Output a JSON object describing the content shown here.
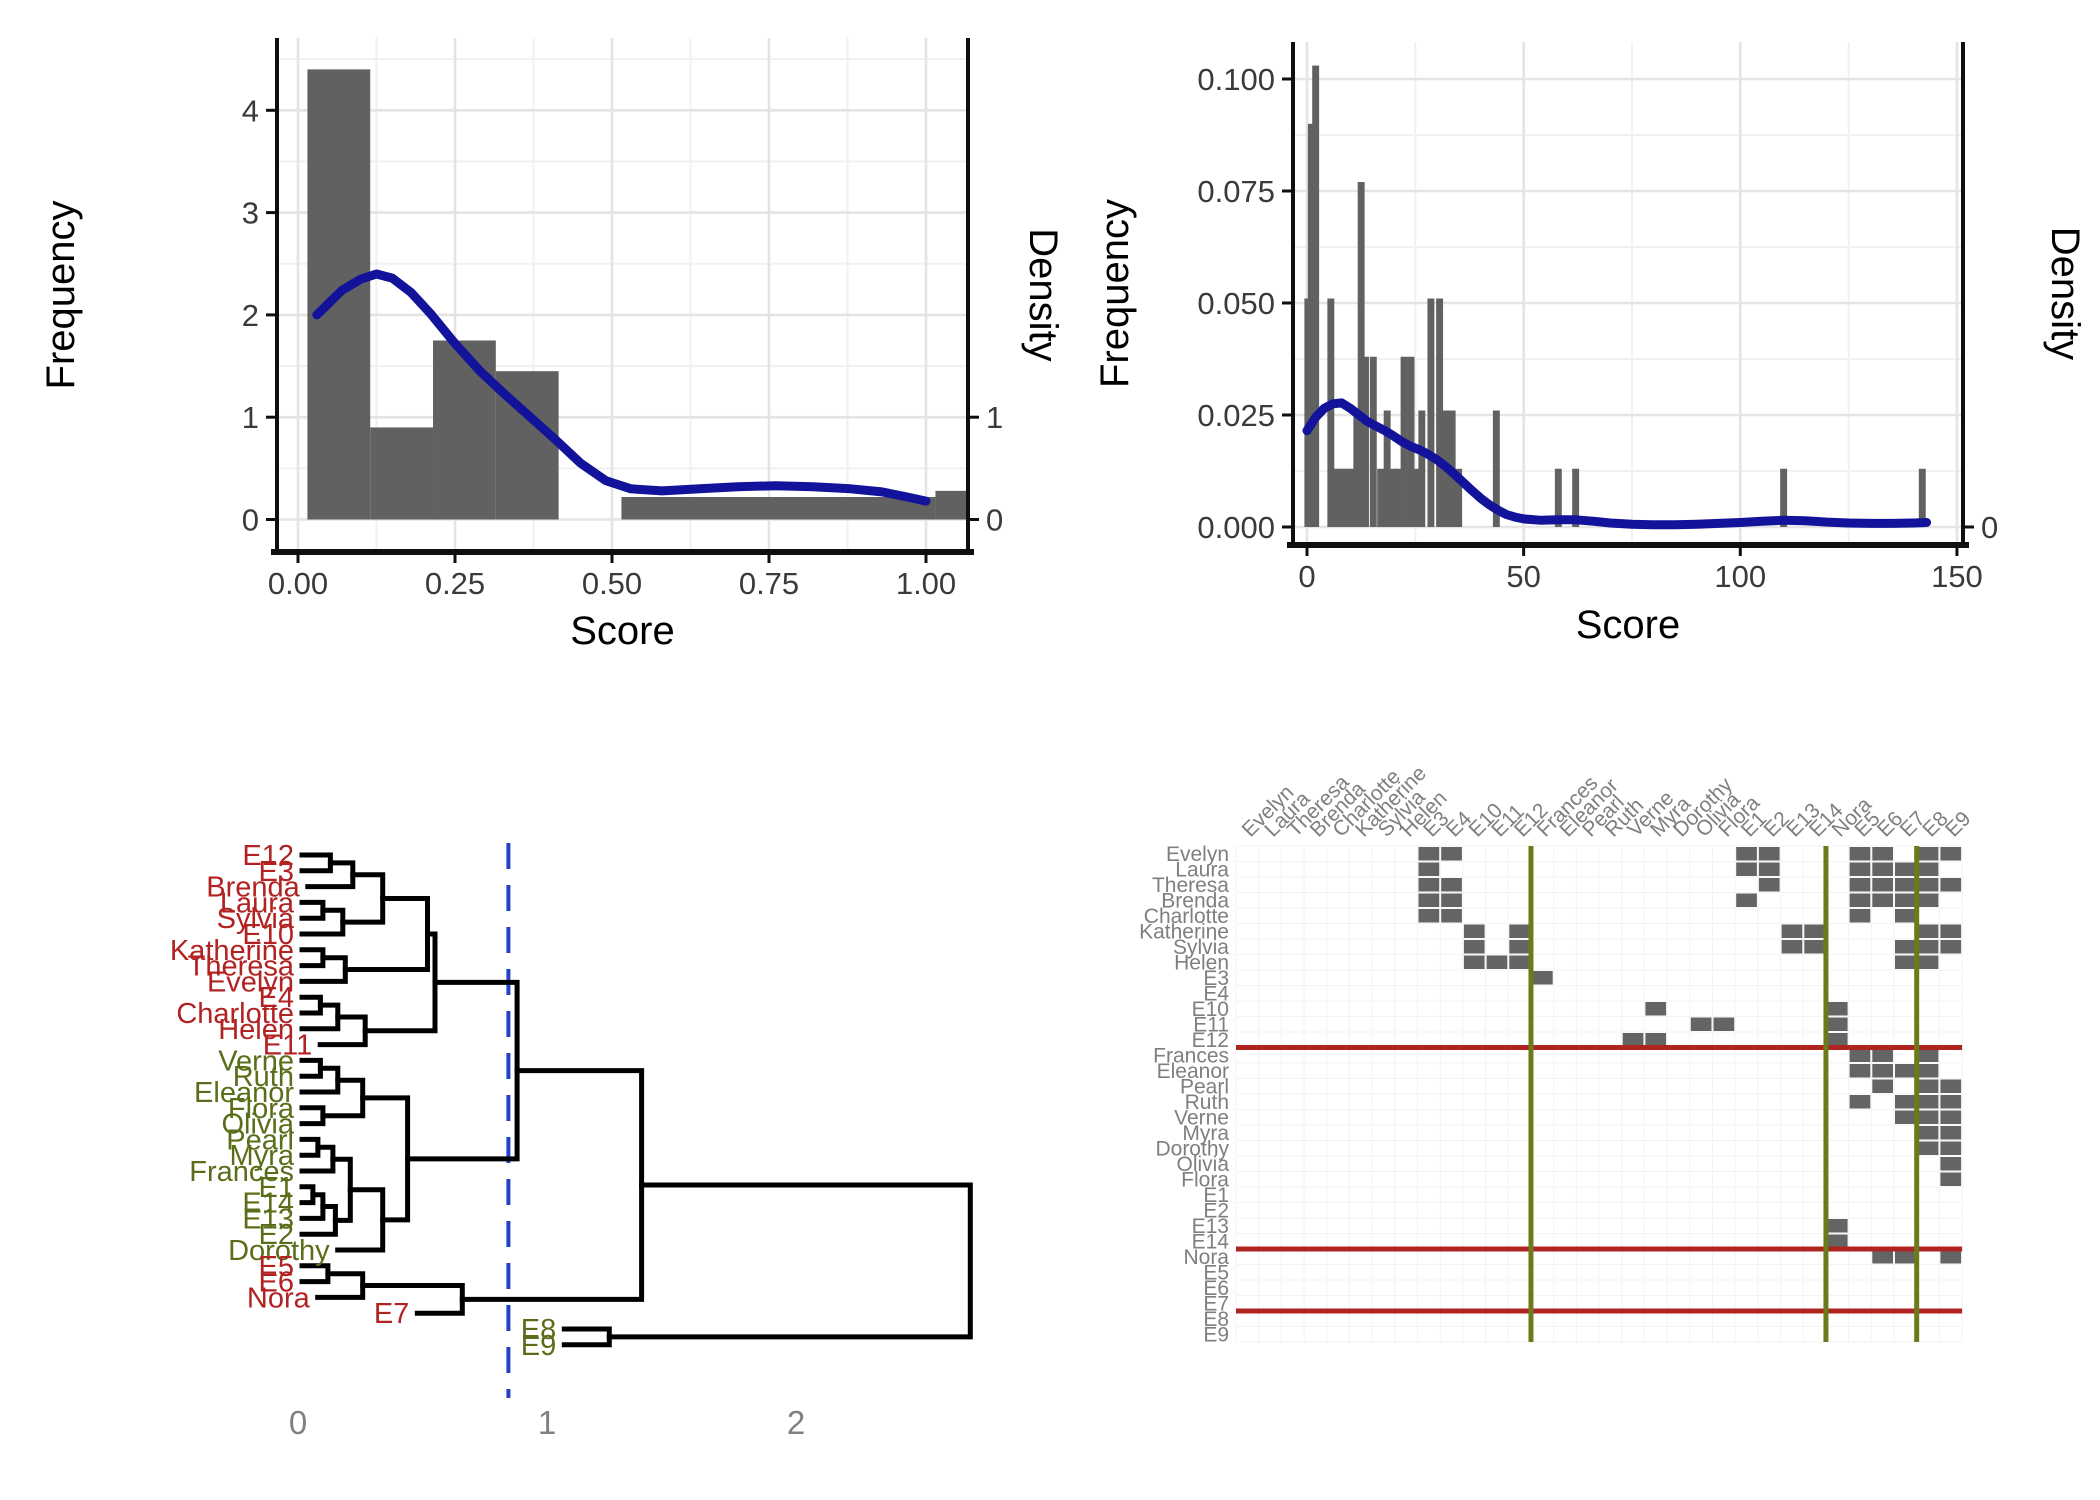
{
  "figure": {
    "background": "#ffffff",
    "colors": {
      "bar": "#616161",
      "curve": "#12129B",
      "grid_major": "#e4e4e4",
      "grid_minor": "#f1f1f1",
      "axis": "#0f0f0f",
      "tick_label": "#3a3a3a",
      "axis_title": "#000000",
      "dendro_line": "#000000",
      "dendro_tick_label": "#808080",
      "cut_line": "#2441C8",
      "label_red": "#B22222",
      "label_green": "#5A6E19",
      "matrix_cell": "#646464",
      "matrix_label": "#7f7f7f",
      "matrix_grid": "#f3f3f3",
      "block_hline": "#B02420",
      "block_vline": "#6B7B1C"
    }
  },
  "chart_data": [
    {
      "id": "hist-score-normalized",
      "type": "bar",
      "subtype": "histogram_with_density",
      "xlabel": "Score",
      "ylabel_left": "Frequency",
      "ylabel_right": "Density",
      "x_ticks": [
        0,
        0.25,
        0.5,
        0.75,
        1.0
      ],
      "x_tick_labels": [
        "0.00",
        "0.25",
        "0.50",
        "0.75",
        "1.00"
      ],
      "x_minor": [
        0.125,
        0.375,
        0.625,
        0.875
      ],
      "y_ticks": [
        0,
        1,
        2,
        3,
        4
      ],
      "y_tick_labels": [
        "0",
        "1",
        "2",
        "3",
        "4"
      ],
      "y_minor": [
        0.5,
        1.5,
        2.5,
        3.5,
        4.5
      ],
      "right_ticks": [
        0,
        1
      ],
      "right_tick_labels": [
        "0",
        "1"
      ],
      "xlim": [
        -0.034,
        1.067
      ],
      "ylim": [
        0,
        4.7
      ],
      "bars": [
        [
          0.015,
          0.115,
          4.4
        ],
        [
          0.115,
          0.215,
          0.9
        ],
        [
          0.215,
          0.315,
          1.75
        ],
        [
          0.315,
          0.415,
          1.45
        ],
        [
          0.515,
          1.015,
          0.22
        ],
        [
          1.015,
          1.067,
          0.28
        ]
      ],
      "density": [
        [
          0.03,
          2.0
        ],
        [
          0.05,
          2.12
        ],
        [
          0.07,
          2.24
        ],
        [
          0.1,
          2.35
        ],
        [
          0.125,
          2.4
        ],
        [
          0.15,
          2.36
        ],
        [
          0.18,
          2.22
        ],
        [
          0.21,
          2.02
        ],
        [
          0.25,
          1.72
        ],
        [
          0.29,
          1.45
        ],
        [
          0.33,
          1.22
        ],
        [
          0.37,
          1.0
        ],
        [
          0.41,
          0.78
        ],
        [
          0.45,
          0.55
        ],
        [
          0.49,
          0.38
        ],
        [
          0.53,
          0.3
        ],
        [
          0.58,
          0.28
        ],
        [
          0.64,
          0.3
        ],
        [
          0.7,
          0.32
        ],
        [
          0.76,
          0.33
        ],
        [
          0.82,
          0.32
        ],
        [
          0.88,
          0.3
        ],
        [
          0.93,
          0.27
        ],
        [
          0.97,
          0.22
        ],
        [
          1.0,
          0.18
        ]
      ]
    },
    {
      "id": "hist-score-raw",
      "type": "bar",
      "subtype": "histogram_with_density",
      "xlabel": "Score",
      "ylabel_left": "Frequency",
      "ylabel_right": "Density",
      "x_ticks": [
        0,
        50,
        100,
        150
      ],
      "x_tick_labels": [
        "0",
        "50",
        "100",
        "150"
      ],
      "x_minor": [
        25,
        75,
        125
      ],
      "y_ticks": [
        0,
        0.025,
        0.05,
        0.075,
        0.1
      ],
      "y_tick_labels": [
        "0.000",
        "0.025",
        "0.050",
        "0.075",
        "0.100"
      ],
      "y_minor": [
        0.0125,
        0.0375,
        0.0625,
        0.0875
      ],
      "right_ticks": [
        0
      ],
      "right_tick_labels": [
        "0"
      ],
      "xlim": [
        -3,
        152
      ],
      "ylim": [
        0,
        0.108
      ],
      "bar_width": 1.6,
      "spikes": [
        [
          0.2,
          0.051
        ],
        [
          1.0,
          0.09
        ],
        [
          2.0,
          0.103
        ],
        [
          5.5,
          0.051
        ],
        [
          7,
          0.013
        ],
        [
          8,
          0.013
        ],
        [
          9,
          0.013
        ],
        [
          10,
          0.013
        ],
        [
          11.5,
          0.026
        ],
        [
          12.5,
          0.077
        ],
        [
          13.5,
          0.038
        ],
        [
          15.3,
          0.038
        ],
        [
          17,
          0.013
        ],
        [
          18.5,
          0.026
        ],
        [
          20,
          0.013
        ],
        [
          21,
          0.013
        ],
        [
          22.4,
          0.038
        ],
        [
          24,
          0.038
        ],
        [
          25.5,
          0.013
        ],
        [
          26.5,
          0.026
        ],
        [
          28.6,
          0.051
        ],
        [
          30.6,
          0.051
        ],
        [
          32,
          0.026
        ],
        [
          33.5,
          0.026
        ],
        [
          35,
          0.013
        ],
        [
          43.7,
          0.026
        ],
        [
          58,
          0.013
        ],
        [
          62,
          0.013
        ],
        [
          110,
          0.013
        ],
        [
          142,
          0.013
        ]
      ],
      "density": [
        [
          0,
          0.0215
        ],
        [
          2,
          0.0245
        ],
        [
          4,
          0.0265
        ],
        [
          6,
          0.0275
        ],
        [
          8,
          0.0277
        ],
        [
          10,
          0.0265
        ],
        [
          12,
          0.025
        ],
        [
          14,
          0.0235
        ],
        [
          16,
          0.0225
        ],
        [
          18,
          0.0215
        ],
        [
          20,
          0.0203
        ],
        [
          22,
          0.019
        ],
        [
          24,
          0.018
        ],
        [
          26,
          0.0172
        ],
        [
          28,
          0.0162
        ],
        [
          30,
          0.015
        ],
        [
          32,
          0.0135
        ],
        [
          34,
          0.0118
        ],
        [
          36,
          0.01
        ],
        [
          38,
          0.0082
        ],
        [
          40,
          0.0065
        ],
        [
          42,
          0.005
        ],
        [
          44,
          0.0038
        ],
        [
          46,
          0.0028
        ],
        [
          48,
          0.0022
        ],
        [
          50,
          0.0018
        ],
        [
          54,
          0.0015
        ],
        [
          58,
          0.0016
        ],
        [
          62,
          0.0016
        ],
        [
          66,
          0.0013
        ],
        [
          70,
          0.0009
        ],
        [
          75,
          0.0006
        ],
        [
          80,
          0.0005
        ],
        [
          85,
          0.0005
        ],
        [
          90,
          0.0006
        ],
        [
          95,
          0.0008
        ],
        [
          100,
          0.001
        ],
        [
          105,
          0.0013
        ],
        [
          110,
          0.0015
        ],
        [
          115,
          0.0014
        ],
        [
          120,
          0.0011
        ],
        [
          125,
          0.0009
        ],
        [
          130,
          0.0008
        ],
        [
          135,
          0.0008
        ],
        [
          140,
          0.0009
        ],
        [
          143,
          0.001
        ]
      ]
    },
    {
      "id": "equivalence-dendrogram",
      "type": "dendrogram",
      "x_ticks": [
        0,
        1,
        2
      ],
      "x_tick_labels": [
        "0",
        "1",
        "2"
      ],
      "cut_height": 0.845,
      "leaves": [
        {
          "label": "E12",
          "color": "red"
        },
        {
          "label": "E3",
          "color": "red"
        },
        {
          "label": "Brenda",
          "color": "red"
        },
        {
          "label": "Laura",
          "color": "red"
        },
        {
          "label": "Sylvia",
          "color": "red"
        },
        {
          "label": "E10",
          "color": "red"
        },
        {
          "label": "Katherine",
          "color": "red"
        },
        {
          "label": "Theresa",
          "color": "red"
        },
        {
          "label": "Evelyn",
          "color": "red"
        },
        {
          "label": "E4",
          "color": "red"
        },
        {
          "label": "Charlotte",
          "color": "red"
        },
        {
          "label": "Helen",
          "color": "red"
        },
        {
          "label": "E11",
          "color": "red"
        },
        {
          "label": "Verne",
          "color": "green"
        },
        {
          "label": "Ruth",
          "color": "green"
        },
        {
          "label": "Eleanor",
          "color": "green"
        },
        {
          "label": "Flora",
          "color": "green"
        },
        {
          "label": "Olivia",
          "color": "green"
        },
        {
          "label": "Pearl",
          "color": "green"
        },
        {
          "label": "Myra",
          "color": "green"
        },
        {
          "label": "Frances",
          "color": "green"
        },
        {
          "label": "E1",
          "color": "green"
        },
        {
          "label": "E14",
          "color": "green"
        },
        {
          "label": "E13",
          "color": "green"
        },
        {
          "label": "E2",
          "color": "green"
        },
        {
          "label": "Dorothy",
          "color": "green"
        },
        {
          "label": "E5",
          "color": "red"
        },
        {
          "label": "E6",
          "color": "red"
        },
        {
          "label": "Nora",
          "color": "red"
        },
        {
          "label": "E7",
          "color": "red"
        },
        {
          "label": "E8",
          "color": "green"
        },
        {
          "label": "E9",
          "color": "green"
        }
      ],
      "merges": [
        [
          -1,
          -2,
          0.13
        ],
        [
          1,
          -3,
          0.22
        ],
        [
          -4,
          -5,
          0.1
        ],
        [
          3,
          -6,
          0.18
        ],
        [
          2,
          4,
          0.34
        ],
        [
          -7,
          -8,
          0.1
        ],
        [
          6,
          -9,
          0.19
        ],
        [
          5,
          7,
          0.52
        ],
        [
          -10,
          -11,
          0.09
        ],
        [
          9,
          -12,
          0.16
        ],
        [
          10,
          -13,
          0.27
        ],
        [
          8,
          11,
          0.55
        ],
        [
          -14,
          -15,
          0.09
        ],
        [
          13,
          -16,
          0.16
        ],
        [
          -17,
          -18,
          0.1
        ],
        [
          14,
          15,
          0.26
        ],
        [
          -19,
          -20,
          0.08
        ],
        [
          17,
          -21,
          0.14
        ],
        [
          -22,
          -23,
          0.06
        ],
        [
          19,
          -24,
          0.1
        ],
        [
          20,
          -25,
          0.15
        ],
        [
          18,
          21,
          0.21
        ],
        [
          22,
          -26,
          0.34
        ],
        [
          16,
          23,
          0.44
        ],
        [
          12,
          24,
          0.88
        ],
        [
          -27,
          -28,
          0.12
        ],
        [
          26,
          -29,
          0.26
        ],
        [
          27,
          -30,
          0.66
        ],
        [
          25,
          28,
          1.38
        ],
        [
          -31,
          -32,
          1.25
        ],
        [
          29,
          30,
          2.7
        ]
      ]
    },
    {
      "id": "blockmodel-matrix",
      "type": "heatmap",
      "order": [
        "Evelyn",
        "Laura",
        "Theresa",
        "Brenda",
        "Charlotte",
        "Katherine",
        "Sylvia",
        "Helen",
        "E3",
        "E4",
        "E10",
        "E11",
        "E12",
        "Frances",
        "Eleanor",
        "Pearl",
        "Ruth",
        "Verne",
        "Myra",
        "Dorothy",
        "Olivia",
        "Flora",
        "E1",
        "E2",
        "E13",
        "E14",
        "Nora",
        "E5",
        "E6",
        "E7",
        "E8",
        "E9"
      ],
      "attendance": {
        "Evelyn": [
          1,
          2,
          3,
          4,
          5,
          6,
          8,
          9
        ],
        "Laura": [
          1,
          2,
          3,
          5,
          6,
          7,
          8
        ],
        "Theresa": [
          2,
          3,
          4,
          5,
          6,
          7,
          8,
          9
        ],
        "Brenda": [
          1,
          3,
          4,
          5,
          6,
          7,
          8
        ],
        "Charlotte": [
          3,
          4,
          5,
          7
        ],
        "Frances": [
          3,
          5,
          6,
          8
        ],
        "Eleanor": [
          5,
          6,
          7,
          8
        ],
        "Pearl": [
          6,
          8,
          9
        ],
        "Ruth": [
          5,
          7,
          8,
          9
        ],
        "Verne": [
          7,
          8,
          9,
          12
        ],
        "Myra": [
          8,
          9,
          10,
          12
        ],
        "Katherine": [
          8,
          9,
          10,
          12,
          13,
          14
        ],
        "Sylvia": [
          7,
          8,
          9,
          10,
          12,
          13,
          14
        ],
        "Nora": [
          6,
          7,
          9,
          10,
          11,
          12,
          13,
          14
        ],
        "Helen": [
          7,
          8,
          10,
          11,
          12
        ],
        "Dorothy": [
          8,
          9
        ],
        "Olivia": [
          9,
          11
        ],
        "Flora": [
          9,
          11
        ]
      },
      "block_boundaries": [
        13,
        26,
        30
      ],
      "upper_triangle_only": true
    }
  ]
}
